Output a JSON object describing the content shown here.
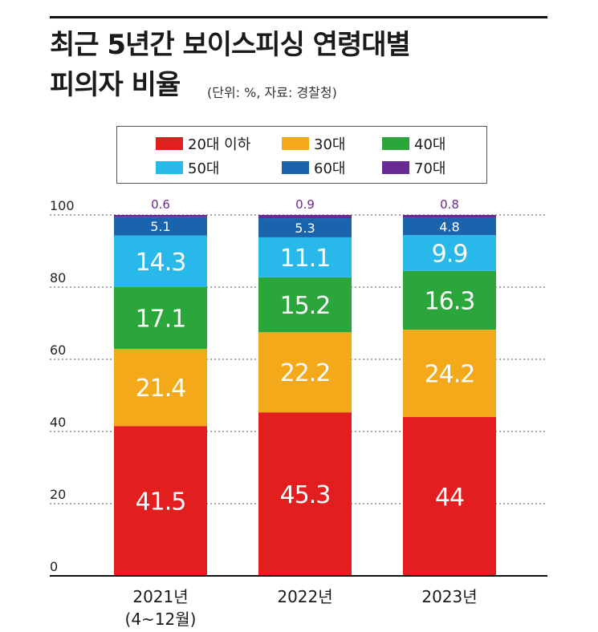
{
  "title_line1": "최근 5년간 보이스피싱 연령대별",
  "title_line2": "피의자 비율",
  "subtitle": "(단위: %, 자료: 경찰청)",
  "colors": {
    "20대 이하": "#e21e1e",
    "30대": "#f3a91a",
    "40대": "#2aa63a",
    "50대": "#28b8ea",
    "60대": "#1a63ad",
    "70대": "#6a2a95"
  },
  "legend": [
    "20대 이하",
    "30대",
    "40대",
    "50대",
    "60대",
    "70대"
  ],
  "category_labels": [
    {
      "line1": "2021년",
      "line2": "(4~12월)"
    },
    {
      "line1": "2022년",
      "line2": ""
    },
    {
      "line1": "2023년",
      "line2": ""
    }
  ],
  "chart_data": {
    "type": "bar",
    "stacked": true,
    "title": "최근 5년간 보이스피싱 연령대별 피의자 비율",
    "subtitle": "(단위: %, 자료: 경찰청)",
    "categories": [
      "2021년 (4~12월)",
      "2022년",
      "2023년"
    ],
    "series": [
      {
        "name": "20대 이하",
        "values": [
          41.5,
          45.3,
          44
        ]
      },
      {
        "name": "30대",
        "values": [
          21.4,
          22.2,
          24.2
        ]
      },
      {
        "name": "40대",
        "values": [
          17.1,
          15.2,
          16.3
        ]
      },
      {
        "name": "50대",
        "values": [
          14.3,
          11.1,
          9.9
        ]
      },
      {
        "name": "60대",
        "values": [
          5.1,
          5.3,
          4.8
        ]
      },
      {
        "name": "70대",
        "values": [
          0.6,
          0.9,
          0.8
        ]
      }
    ],
    "yticks": [
      0,
      20,
      40,
      60,
      80,
      100
    ],
    "ylim": [
      0,
      100
    ],
    "xlabel": "",
    "ylabel": "",
    "legend_position": "top",
    "grid": "dotted horizontal"
  }
}
